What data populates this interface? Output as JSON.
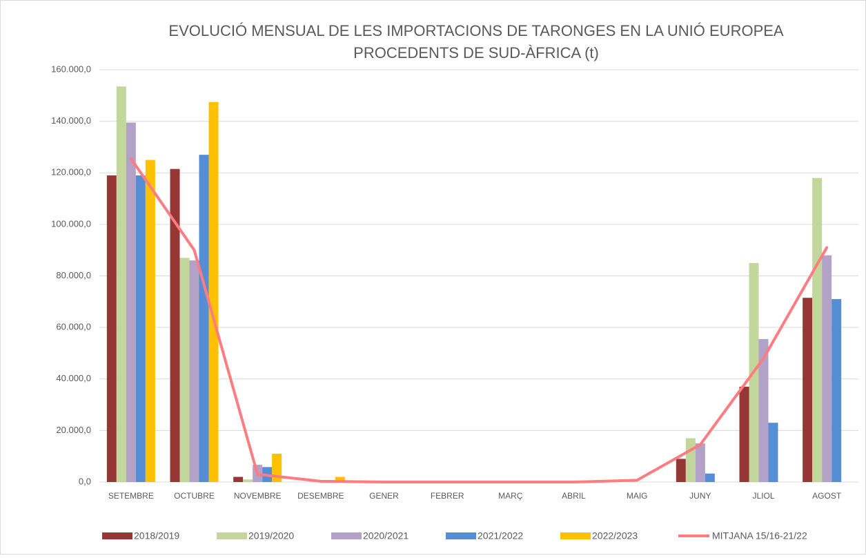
{
  "chart_data": {
    "type": "bar",
    "title": "EVOLUCIÓ MENSUAL DE LES IMPORTACIONS DE TARONGES EN LA UNIÓ EUROPEA",
    "subtitle": "PROCEDENTS DE SUD-ÀFRICA (t)",
    "categories": [
      "SETEMBRE",
      "OCTUBRE",
      "NOVEMBRE",
      "DESEMBRE",
      "GENER",
      "FEBRER",
      "MARÇ",
      "ABRIL",
      "MAIG",
      "JUNY",
      "JLIOL",
      "AGOST"
    ],
    "series": [
      {
        "name": "2018/2019",
        "type": "bar",
        "color": "#953735",
        "values": [
          119000,
          121500,
          2000,
          0,
          0,
          0,
          0,
          0,
          0,
          9000,
          37000,
          71500
        ]
      },
      {
        "name": "2019/2020",
        "type": "bar",
        "color": "#c3d69b",
        "values": [
          153500,
          87000,
          1000,
          0,
          0,
          0,
          0,
          0,
          0,
          17000,
          85000,
          118000
        ]
      },
      {
        "name": "2020/2021",
        "type": "bar",
        "color": "#b3a2c7",
        "values": [
          139500,
          86000,
          6700,
          0,
          0,
          0,
          0,
          0,
          0,
          15000,
          55500,
          88000
        ]
      },
      {
        "name": "2021/2022",
        "type": "bar",
        "color": "#558ed5",
        "values": [
          119000,
          127000,
          5800,
          0,
          0,
          0,
          0,
          0,
          0,
          3300,
          23000,
          71000
        ]
      },
      {
        "name": "2022/2023",
        "type": "bar",
        "color": "#ffc000",
        "values": [
          125000,
          147500,
          11000,
          2000,
          0,
          0,
          0,
          0,
          0,
          null,
          null,
          null
        ]
      },
      {
        "name": "MITJANA 15/16-21/22",
        "type": "line",
        "color": "#ff7c80",
        "values": [
          125500,
          90000,
          3000,
          300,
          0,
          0,
          0,
          0,
          700,
          14500,
          48000,
          91000
        ]
      }
    ],
    "ylim": [
      0,
      160000
    ],
    "yticks": [
      {
        "value": 0,
        "label": "0,0"
      },
      {
        "value": 20000,
        "label": "20.000,0"
      },
      {
        "value": 40000,
        "label": "40.000,0"
      },
      {
        "value": 60000,
        "label": "60.000,0"
      },
      {
        "value": 80000,
        "label": "80.000,0"
      },
      {
        "value": 100000,
        "label": "100.000,0"
      },
      {
        "value": 120000,
        "label": "120.000,0"
      },
      {
        "value": 140000,
        "label": "140.000,0"
      },
      {
        "value": 160000,
        "label": "160.000,0"
      }
    ],
    "grid": true,
    "legend": "bottom"
  }
}
